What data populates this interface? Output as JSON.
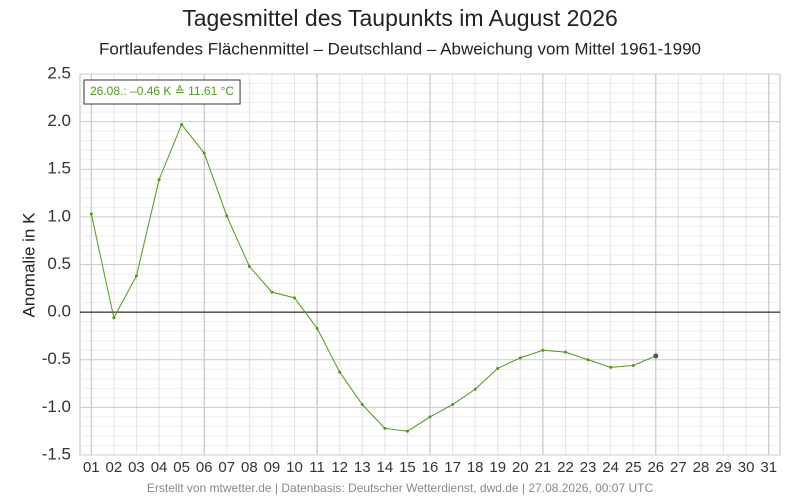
{
  "chart_data": {
    "type": "line",
    "title": "Tagesmittel des Taupunkts im August 2026",
    "subtitle": "Fortlaufendes Flächenmittel – Deutschland – Abweichung vom Mittel 1961-1990",
    "y_label": "Anomalie in K",
    "annotation": "26.08.: –0.46 K ≙ 11.61 °C",
    "footer": "Erstellt von mtwetter.de | Datenbasis: Deutscher Wetterdienst, dwd.de | 27.08.2026, 00:07 UTC",
    "categories": [
      "01",
      "02",
      "03",
      "04",
      "05",
      "06",
      "07",
      "08",
      "09",
      "10",
      "11",
      "12",
      "13",
      "14",
      "15",
      "16",
      "17",
      "18",
      "19",
      "20",
      "21",
      "22",
      "23",
      "24",
      "25",
      "26",
      "27",
      "28",
      "29",
      "30",
      "31"
    ],
    "series": [
      {
        "name": "Anomalie",
        "color": "#4c9a16",
        "values": [
          1.03,
          -0.06,
          0.38,
          1.39,
          1.97,
          1.67,
          1.01,
          0.48,
          0.21,
          0.15,
          -0.17,
          -0.63,
          -0.97,
          -1.22,
          -1.25,
          -1.1,
          -0.97,
          -0.81,
          -0.59,
          -0.48,
          -0.4,
          -0.42,
          -0.5,
          -0.58,
          -0.56,
          -0.46,
          null,
          null,
          null,
          null,
          null
        ]
      }
    ],
    "ylim": [
      -1.5,
      2.5
    ],
    "yticks": [
      {
        "value": -1.5,
        "label": "-1.5"
      },
      {
        "value": -1,
        "label": "-1.0"
      },
      {
        "value": -0.5,
        "label": "-0.5"
      },
      {
        "value": 0,
        "label": "0.0"
      },
      0.5,
      {
        "value": 1,
        "label": "1.0"
      },
      1.5,
      {
        "value": 2,
        "label": "2.0"
      },
      2.5
    ],
    "grid": true
  }
}
